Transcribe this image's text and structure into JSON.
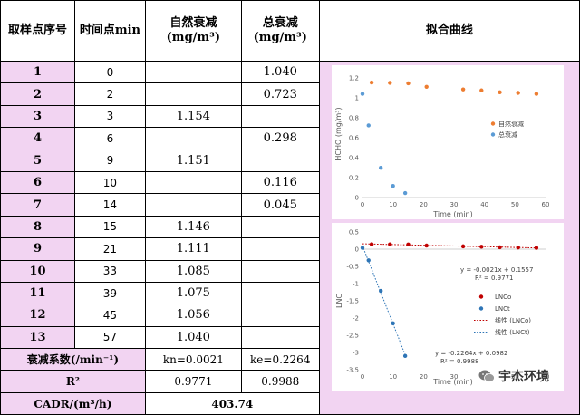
{
  "headers": {
    "sample": "取样点序号",
    "time": "时间点min",
    "natural": "自然衰减",
    "natural_unit": "(mg/m³)",
    "total": "总衰减",
    "total_unit": "(mg/m³)",
    "fit": "拟合曲线"
  },
  "rows": [
    {
      "idx": "1",
      "t": "0",
      "nat": "",
      "tot": "1.040"
    },
    {
      "idx": "2",
      "t": "2",
      "nat": "",
      "tot": "0.723"
    },
    {
      "idx": "3",
      "t": "3",
      "nat": "1.154",
      "tot": ""
    },
    {
      "idx": "4",
      "t": "6",
      "nat": "",
      "tot": "0.298"
    },
    {
      "idx": "5",
      "t": "9",
      "nat": "1.151",
      "tot": ""
    },
    {
      "idx": "6",
      "t": "10",
      "nat": "",
      "tot": "0.116"
    },
    {
      "idx": "7",
      "t": "14",
      "nat": "",
      "tot": "0.045"
    },
    {
      "idx": "8",
      "t": "15",
      "nat": "1.146",
      "tot": ""
    },
    {
      "idx": "9",
      "t": "21",
      "nat": "1.111",
      "tot": ""
    },
    {
      "idx": "10",
      "t": "33",
      "nat": "1.085",
      "tot": ""
    },
    {
      "idx": "11",
      "t": "39",
      "nat": "1.075",
      "tot": ""
    },
    {
      "idx": "12",
      "t": "45",
      "nat": "1.056",
      "tot": ""
    },
    {
      "idx": "13",
      "t": "57",
      "nat": "1.040",
      "tot": ""
    }
  ],
  "summary": {
    "decay_label": "衰减系数(/min⁻¹)",
    "kn": "kn=0.0021",
    "ke": "ke=0.2264",
    "r2_label": "R²",
    "r2_n": "0.9771",
    "r2_e": "0.9988",
    "cadr_label": "CADR/(m³/h)",
    "cadr_value": "403.74"
  },
  "chart_data": [
    {
      "type": "scatter",
      "xlabel": "Time (min)",
      "ylabel": "HCHO (mg/m³)",
      "xlim": [
        0,
        60
      ],
      "ylim": [
        0,
        1.2
      ],
      "xticks": [
        "0",
        "10",
        "20",
        "30",
        "40",
        "50",
        "60"
      ],
      "yticks": [
        "0",
        "0.2",
        "0.4",
        "0.6",
        "0.8",
        "1",
        "1.2"
      ],
      "legend_position": "right",
      "series": [
        {
          "name": "自然衰减",
          "color": "#ed7d31",
          "x": [
            3,
            9,
            15,
            21,
            33,
            39,
            45,
            51,
            57
          ],
          "y": [
            1.154,
            1.151,
            1.146,
            1.111,
            1.085,
            1.075,
            1.056,
            1.05,
            1.04
          ]
        },
        {
          "name": "总衰减",
          "color": "#5b9bd5",
          "x": [
            0,
            2,
            6,
            10,
            14
          ],
          "y": [
            1.04,
            0.723,
            0.298,
            0.116,
            0.045
          ]
        }
      ]
    },
    {
      "type": "scatter",
      "xlabel": "Time (min)",
      "ylabel": "LNC",
      "xlim": [
        0,
        60
      ],
      "ylim": [
        -3.5,
        0.5
      ],
      "xticks": [
        "0",
        "10",
        "20",
        "30",
        "40",
        "50",
        "60"
      ],
      "yticks": [
        "0.5",
        "0",
        "-0.5",
        "-1",
        "-1.5",
        "-2",
        "-2.5",
        "-3",
        "-3.5"
      ],
      "legend_position": "right",
      "series": [
        {
          "name": "LNCo",
          "color": "#c00000",
          "x": [
            3,
            9,
            15,
            21,
            33,
            39,
            45,
            51,
            57
          ],
          "y": [
            0.143,
            0.14,
            0.136,
            0.105,
            0.082,
            0.072,
            0.054,
            0.049,
            0.039
          ]
        },
        {
          "name": "LNCt",
          "color": "#2e75b6",
          "x": [
            0,
            2,
            6,
            10,
            14
          ],
          "y": [
            0.039,
            -0.324,
            -1.211,
            -2.154,
            -3.101
          ]
        }
      ],
      "trendlines": [
        {
          "name": "线性 (LNCo)",
          "color": "#c00000",
          "slope": -0.0021,
          "intercept": 0.1557,
          "equation": "y = -0.0021x + 0.1557",
          "r2": "R² = 0.9771"
        },
        {
          "name": "线性 (LNCt)",
          "color": "#2e75b6",
          "slope": -0.2264,
          "intercept": 0.0982,
          "equation": "y = -0.2264x + 0.0982",
          "r2": "R² = 0.9988"
        }
      ]
    }
  ],
  "watermark": "宇杰环境"
}
